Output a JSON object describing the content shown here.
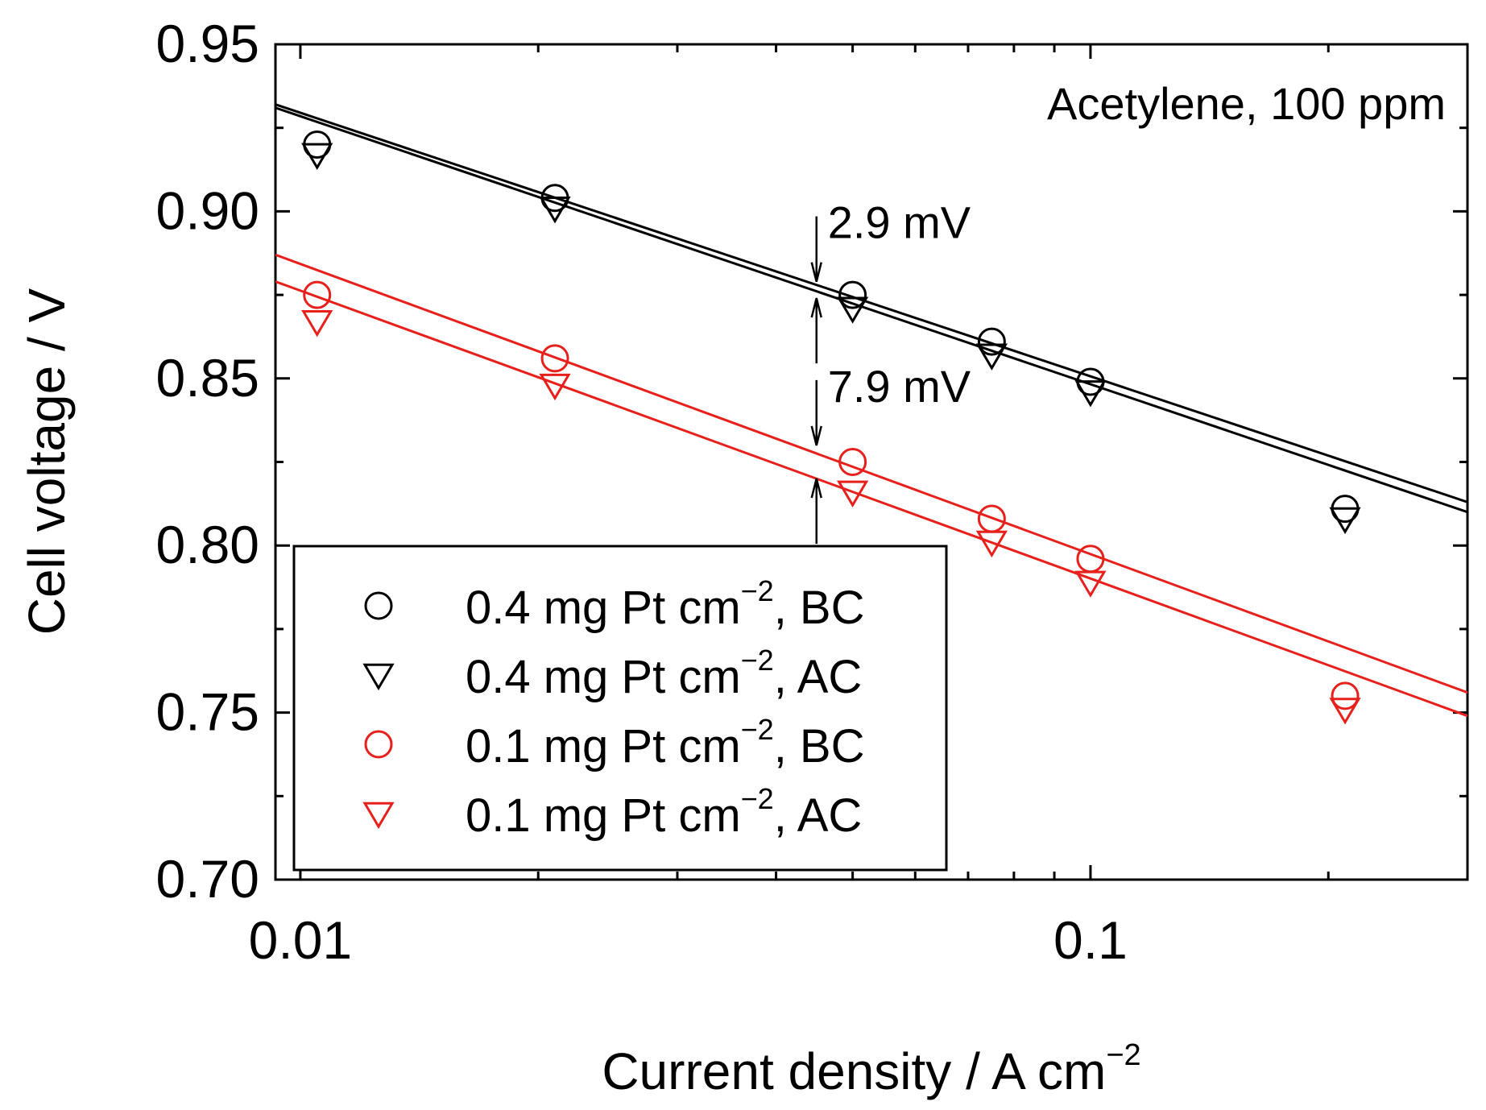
{
  "chart_data": {
    "type": "scatter",
    "xscale": "log",
    "xlim": [
      0.0093,
      0.3
    ],
    "ylim": [
      0.7,
      0.95
    ],
    "xlabel": "Current density / A cm",
    "xlabel_sup": "−2",
    "ylabel": "Cell voltage / V",
    "annotation": "Acetylene, 100 ppm",
    "xticks": [
      {
        "value": 0.01,
        "label": "0.01"
      },
      {
        "value": 0.1,
        "label": "0.1"
      }
    ],
    "yticks": [
      {
        "value": 0.7,
        "label": "0.70"
      },
      {
        "value": 0.75,
        "label": "0.75"
      },
      {
        "value": 0.8,
        "label": "0.80"
      },
      {
        "value": 0.85,
        "label": "0.85"
      },
      {
        "value": 0.9,
        "label": "0.90"
      },
      {
        "value": 0.95,
        "label": "0.95"
      }
    ],
    "series": [
      {
        "name": "0.4 mg Pt cm",
        "suffix": ", BC",
        "marker": "circle",
        "color": "#000000",
        "x": [
          0.0105,
          0.021,
          0.05,
          0.075,
          0.1,
          0.21
        ],
        "y": [
          0.92,
          0.904,
          0.875,
          0.861,
          0.849,
          0.811
        ],
        "fit": [
          [
            0.0093,
            0.932
          ],
          [
            0.3,
            0.813
          ]
        ]
      },
      {
        "name": "0.4 mg Pt cm",
        "suffix": ", AC",
        "marker": "triangle-down",
        "color": "#000000",
        "x": [
          0.0105,
          0.021,
          0.05,
          0.075,
          0.1,
          0.21
        ],
        "y": [
          0.917,
          0.901,
          0.871,
          0.857,
          0.846,
          0.808
        ],
        "fit": [
          [
            0.0093,
            0.931
          ],
          [
            0.3,
            0.81
          ]
        ]
      },
      {
        "name": "0.1 mg Pt cm",
        "suffix": ", BC",
        "marker": "circle",
        "color": "#e8201c",
        "x": [
          0.0105,
          0.021,
          0.05,
          0.075,
          0.1,
          0.21
        ],
        "y": [
          0.875,
          0.856,
          0.825,
          0.808,
          0.796,
          0.755
        ],
        "fit": [
          [
            0.0093,
            0.887
          ],
          [
            0.3,
            0.756
          ]
        ]
      },
      {
        "name": "0.1 mg Pt cm",
        "suffix": ", AC",
        "marker": "triangle-down",
        "color": "#e8201c",
        "x": [
          0.0105,
          0.021,
          0.05,
          0.075,
          0.1,
          0.21
        ],
        "y": [
          0.867,
          0.848,
          0.816,
          0.801,
          0.789,
          0.751
        ],
        "fit": [
          [
            0.0093,
            0.879
          ],
          [
            0.3,
            0.749
          ]
        ]
      }
    ],
    "legend_sup": "−2",
    "legend_position": "lower-left",
    "gaps": [
      {
        "label": "2.9 mV",
        "x": 0.045,
        "y_top": 0.878,
        "y_bottom": 0.875
      },
      {
        "label": "7.9 mV",
        "x": 0.045,
        "y_top": 0.829,
        "y_bottom": 0.821
      }
    ]
  }
}
